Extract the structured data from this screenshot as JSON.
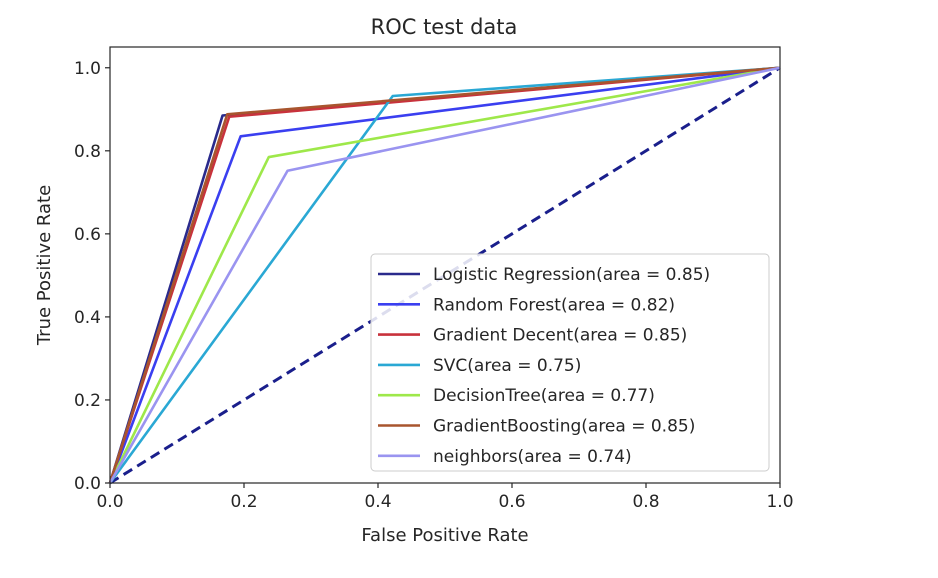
{
  "chart_data": {
    "type": "line",
    "title": "ROC test data",
    "xlabel": "False Positive Rate",
    "ylabel": "True Positive Rate",
    "xlim": [
      0.0,
      1.0
    ],
    "ylim": [
      0.0,
      1.05
    ],
    "x_ticks": [
      "0.0",
      "0.2",
      "0.4",
      "0.6",
      "0.8",
      "1.0"
    ],
    "y_ticks": [
      "0.0",
      "0.2",
      "0.4",
      "0.6",
      "0.8",
      "1.0"
    ],
    "grid": false,
    "legend_position": "lower-right",
    "series": [
      {
        "name": "Logistic Regression(area = 0.85)",
        "color": "#2a2a8c",
        "x": [
          0,
          0.168,
          1
        ],
        "y": [
          0,
          0.885,
          1
        ]
      },
      {
        "name": "Random Forest(area = 0.82)",
        "color": "#3a3ff0",
        "x": [
          0,
          0.195,
          1
        ],
        "y": [
          0,
          0.835,
          1
        ]
      },
      {
        "name": "Gradient Decent(area = 0.85)",
        "color": "#c8323c",
        "x": [
          0,
          0.178,
          1
        ],
        "y": [
          0,
          0.882,
          1
        ]
      },
      {
        "name": "SVC(area = 0.75)",
        "color": "#2aa8d4",
        "x": [
          0,
          0.422,
          1
        ],
        "y": [
          0,
          0.932,
          1
        ]
      },
      {
        "name": "DecisionTree(area = 0.77)",
        "color": "#9ee84a",
        "x": [
          0,
          0.237,
          1
        ],
        "y": [
          0,
          0.785,
          1
        ]
      },
      {
        "name": "GradientBoosting(area = 0.85)",
        "color": "#a8552e",
        "x": [
          0,
          0.175,
          1
        ],
        "y": [
          0,
          0.888,
          1
        ]
      },
      {
        "name": "neighbors(area = 0.74)",
        "color": "#9a94f0",
        "x": [
          0,
          0.265,
          1
        ],
        "y": [
          0,
          0.752,
          1
        ]
      }
    ],
    "reference_line": {
      "color": "#1a1f8c",
      "style": "dashed",
      "x": [
        0,
        1
      ],
      "y": [
        0,
        1
      ]
    }
  }
}
